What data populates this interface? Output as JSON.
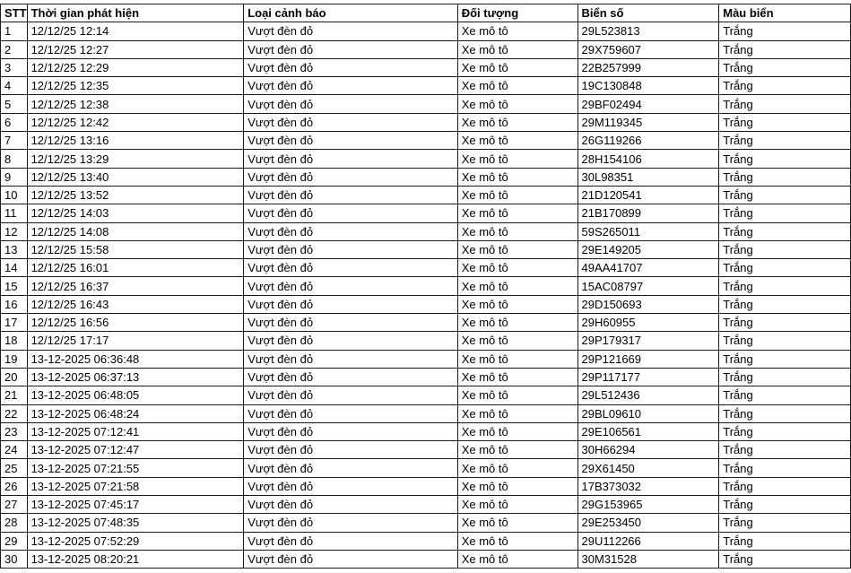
{
  "headers": [
    "STT",
    "Thời gian phát hiện",
    "Loại cảnh báo",
    "Đối tượng",
    "Biển số",
    "Màu biển"
  ],
  "rows": [
    [
      "1",
      "12/12/25 12:14",
      "Vượt đèn đỏ",
      "Xe mô tô",
      "29L523813",
      "Trắng"
    ],
    [
      "2",
      "12/12/25 12:27",
      "Vượt đèn đỏ",
      "Xe mô tô",
      "29X759607",
      "Trắng"
    ],
    [
      "3",
      "12/12/25 12:29",
      "Vượt đèn đỏ",
      "Xe mô tô",
      "22B257999",
      "Trắng"
    ],
    [
      "4",
      "12/12/25 12:35",
      "Vượt đèn đỏ",
      "Xe mô tô",
      "19C130848",
      "Trắng"
    ],
    [
      "5",
      "12/12/25 12:38",
      "Vượt đèn đỏ",
      "Xe mô tô",
      "29BF02494",
      "Trắng"
    ],
    [
      "6",
      "12/12/25 12:42",
      "Vượt đèn đỏ",
      "Xe mô tô",
      "29M119345",
      "Trắng"
    ],
    [
      "7",
      "12/12/25 13:16",
      "Vượt đèn đỏ",
      "Xe mô tô",
      "26G119266",
      "Trắng"
    ],
    [
      "8",
      "12/12/25 13:29",
      "Vượt đèn đỏ",
      "Xe mô tô",
      "28H154106",
      "Trắng"
    ],
    [
      "9",
      "12/12/25 13:40",
      "Vượt đèn đỏ",
      "Xe mô tô",
      "30L98351",
      "Trắng"
    ],
    [
      "10",
      "12/12/25 13:52",
      "Vượt đèn đỏ",
      "Xe mô tô",
      "21D120541",
      "Trắng"
    ],
    [
      "11",
      "12/12/25 14:03",
      "Vượt đèn đỏ",
      "Xe mô tô",
      "21B170899",
      "Trắng"
    ],
    [
      "12",
      "12/12/25 14:08",
      "Vượt đèn đỏ",
      "Xe mô tô",
      "59S265011",
      "Trắng"
    ],
    [
      "13",
      "12/12/25 15:58",
      "Vượt đèn đỏ",
      "Xe mô tô",
      "29E149205",
      "Trắng"
    ],
    [
      "14",
      "12/12/25 16:01",
      "Vượt đèn đỏ",
      "Xe mô tô",
      "49AA41707",
      "Trắng"
    ],
    [
      "15",
      "12/12/25 16:37",
      "Vượt đèn đỏ",
      "Xe mô tô",
      "15AC08797",
      "Trắng"
    ],
    [
      "16",
      "12/12/25 16:43",
      "Vượt đèn đỏ",
      "Xe mô tô",
      "29D150693",
      "Trắng"
    ],
    [
      "17",
      "12/12/25 16:56",
      "Vượt đèn đỏ",
      "Xe mô tô",
      "29H60955",
      "Trắng"
    ],
    [
      "18",
      "12/12/25 17:17",
      "Vượt đèn đỏ",
      "Xe mô tô",
      "29P179317",
      "Trắng"
    ],
    [
      "19",
      "13-12-2025 06:36:48",
      "Vượt đèn đỏ",
      "Xe mô tô",
      "29P121669",
      "Trắng"
    ],
    [
      "20",
      "13-12-2025 06:37:13",
      "Vượt đèn đỏ",
      "Xe mô tô",
      "29P117177",
      "Trắng"
    ],
    [
      "21",
      "13-12-2025 06:48:05",
      "Vượt đèn đỏ",
      "Xe mô tô",
      "29L512436",
      "Trắng"
    ],
    [
      "22",
      "13-12-2025 06:48:24",
      "Vượt đèn đỏ",
      "Xe mô tô",
      "29BL09610",
      "Trắng"
    ],
    [
      "23",
      "13-12-2025 07:12:41",
      "Vượt đèn đỏ",
      "Xe mô tô",
      "29E106561",
      "Trắng"
    ],
    [
      "24",
      "13-12-2025 07:12:47",
      "Vượt đèn đỏ",
      "Xe mô tô",
      "30H66294",
      "Trắng"
    ],
    [
      "25",
      "13-12-2025 07:21:55",
      "Vượt đèn đỏ",
      "Xe mô tô",
      "29X61450",
      "Trắng"
    ],
    [
      "26",
      "13-12-2025 07:21:58",
      "Vượt đèn đỏ",
      "Xe mô tô",
      "17B373032",
      "Trắng"
    ],
    [
      "27",
      "13-12-2025 07:45:17",
      "Vượt đèn đỏ",
      "Xe mô tô",
      "29G153965",
      "Trắng"
    ],
    [
      "28",
      "13-12-2025 07:48:35",
      "Vượt đèn đỏ",
      "Xe mô tô",
      "29E253450",
      "Trắng"
    ],
    [
      "29",
      "13-12-2025 07:52:29",
      "Vượt đèn đỏ",
      "Xe mô tô",
      "29U112266",
      "Trắng"
    ],
    [
      "30",
      "13-12-2025 08:20:21",
      "Vượt đèn đỏ",
      "Xe mô tô",
      "30M31528",
      "Trắng"
    ]
  ]
}
